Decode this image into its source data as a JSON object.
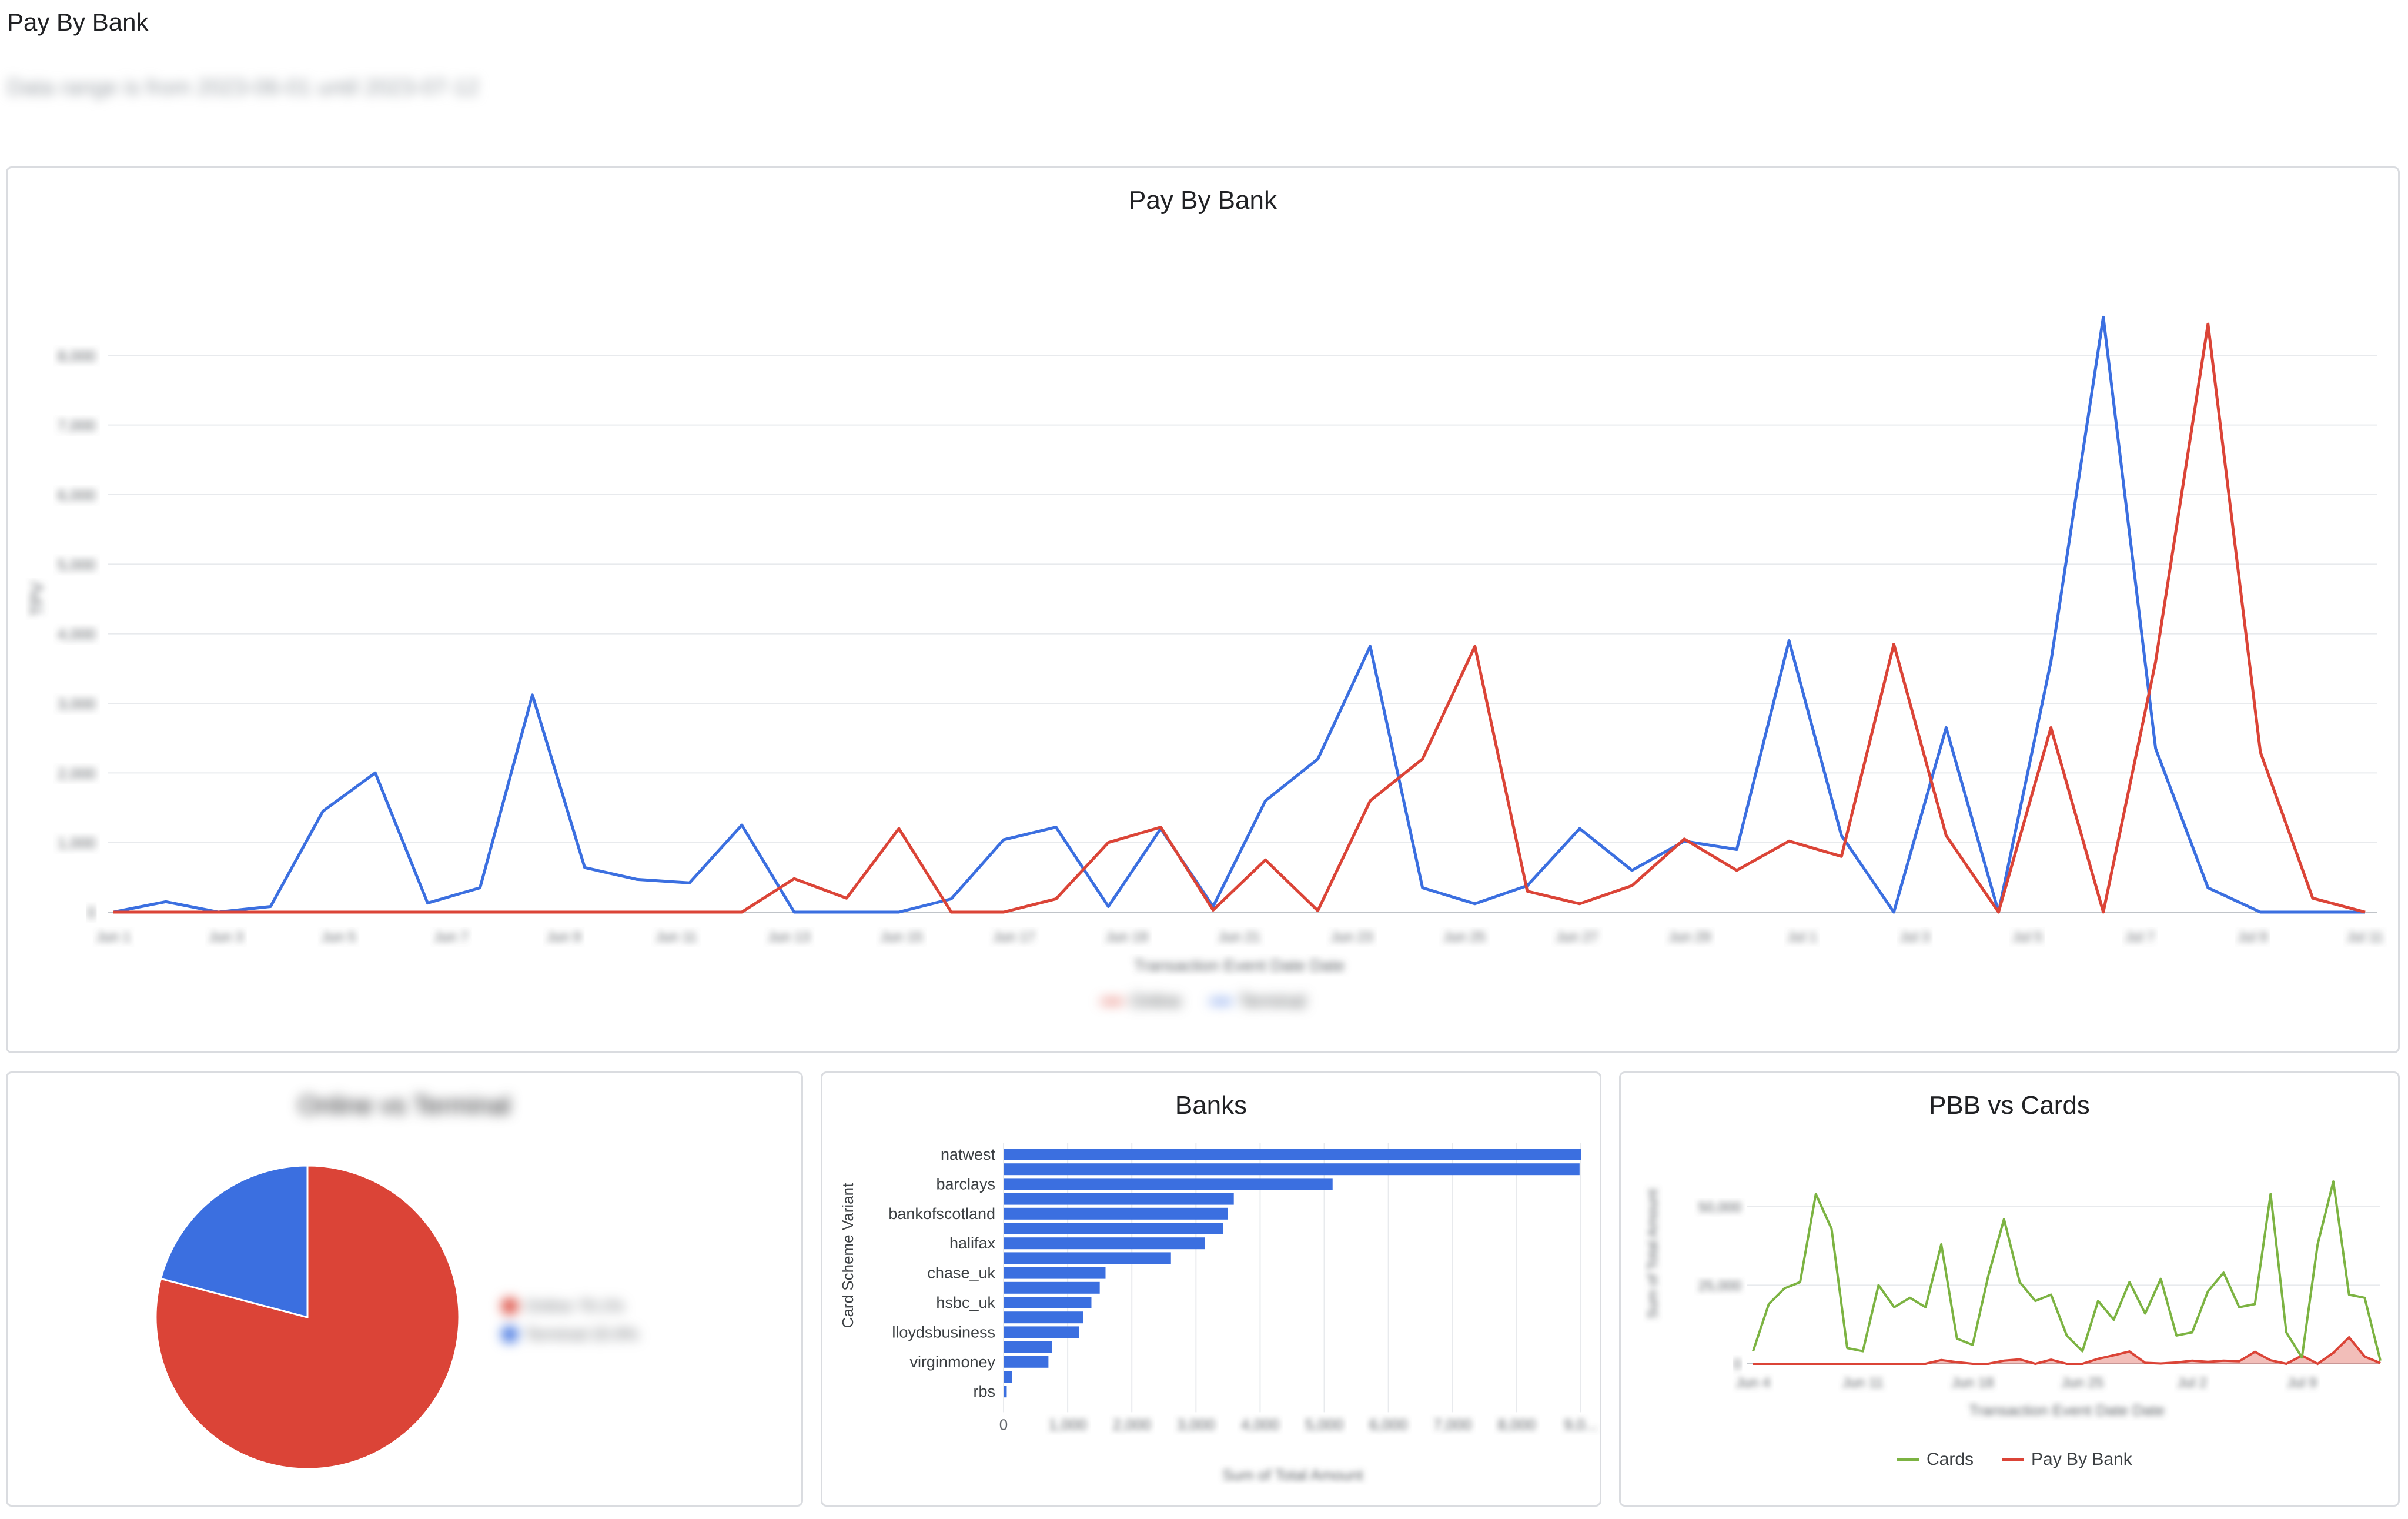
{
  "page": {
    "title": "Pay By Bank",
    "subtitle": "Data range is from 2023-06-01 until 2023-07-12"
  },
  "colors": {
    "online": "#db4437",
    "terminal": "#3b6fe0",
    "cards": "#7cb342",
    "grid": "#e8eaed",
    "axis_text": "#5f6368"
  },
  "chart_data": [
    {
      "id": "main",
      "type": "line",
      "title": "Pay By Bank",
      "xlabel": "Transaction Event Date Date",
      "ylabel": "TPV",
      "ylim": [
        0,
        9000
      ],
      "yticks": [
        "0",
        "1,000",
        "2,000",
        "3,000",
        "4,000",
        "5,000",
        "6,000",
        "7,000",
        "8,000"
      ],
      "xtick_labels": [
        "Jun 1",
        "Jun 3",
        "Jun 5",
        "Jun 7",
        "Jun 9",
        "Jun 11",
        "Jun 13",
        "Jun 15",
        "Jun 17",
        "Jun 19",
        "Jun 21",
        "Jun 23",
        "Jun 25",
        "Jun 27",
        "Jun 29",
        "Jul 1",
        "Jul 3",
        "Jul 5",
        "Jul 7",
        "Jul 9",
        "Jul 11"
      ],
      "legend": [
        "Online",
        "Terminal"
      ],
      "legend_position": "bottom",
      "series": [
        {
          "name": "Online",
          "values": [
            0,
            0,
            0,
            0,
            0,
            0,
            0,
            0,
            0,
            0,
            0,
            0,
            0,
            480,
            200,
            1200,
            0,
            0,
            190,
            1000,
            1220,
            30,
            750,
            20,
            1600,
            2200,
            3820,
            300,
            120,
            380,
            1050,
            600,
            1020,
            800,
            3850,
            1100,
            0,
            2650,
            0,
            3600,
            8450,
            2300,
            200,
            0
          ]
        },
        {
          "name": "Terminal",
          "values": [
            0,
            150,
            0,
            80,
            1450,
            2000,
            130,
            350,
            3120,
            640,
            470,
            420,
            1250,
            0,
            0,
            0,
            190,
            1040,
            1220,
            80,
            1200,
            80,
            1600,
            2200,
            3820,
            350,
            120,
            380,
            1200,
            600,
            1020,
            900,
            3900,
            1100,
            0,
            2650,
            0,
            3600,
            8550,
            2350,
            350,
            0,
            0,
            0
          ]
        }
      ]
    },
    {
      "id": "pie",
      "type": "pie",
      "title": "Online vs Terminal",
      "legend_position": "right",
      "slices": [
        {
          "name": "Online",
          "percent": 79.1,
          "label": "Online 79.1%"
        },
        {
          "name": "Terminal",
          "percent": 20.9,
          "label": "Terminal 20.9%"
        }
      ]
    },
    {
      "id": "banks",
      "type": "bar",
      "orientation": "horizontal",
      "title": "Banks",
      "ylabel": "Card Scheme Variant",
      "xlabel": "Sum of Total Amount",
      "xlim": [
        0,
        9000
      ],
      "xticks": [
        "0",
        "1,000",
        "2,000",
        "3,000",
        "4,000",
        "5,000",
        "6,000",
        "7,000",
        "8,000",
        "9,0..."
      ],
      "visible_category_labels": [
        "natwest",
        "barclays",
        "bankofscotland",
        "halifax",
        "chase_uk",
        "hsbc_uk",
        "lloydsbusiness",
        "virginmoney",
        "rbs"
      ],
      "values": [
        9000,
        8980,
        5130,
        3590,
        3500,
        3420,
        3140,
        2610,
        1590,
        1500,
        1370,
        1240,
        1180,
        760,
        700,
        130,
        50
      ]
    },
    {
      "id": "pbb_vs_cards",
      "type": "line",
      "title": "PBB vs Cards",
      "xlabel": "Transaction Event Date Date",
      "ylabel": "Sum of Total Amount",
      "ylim": [
        0,
        70000
      ],
      "yticks": [
        "0",
        "25,000",
        "50,000"
      ],
      "xtick_labels": [
        "Jun 4",
        "Jun 11",
        "Jun 18",
        "Jun 25",
        "Jul 2",
        "Jul 9"
      ],
      "legend": [
        "Cards",
        "Pay By Bank"
      ],
      "legend_position": "bottom",
      "series": [
        {
          "name": "Cards",
          "values": [
            4000,
            19000,
            24000,
            26000,
            54000,
            43000,
            5000,
            4000,
            25000,
            18000,
            21000,
            18000,
            38000,
            8000,
            6000,
            28000,
            46000,
            26000,
            20000,
            22000,
            9000,
            4000,
            20000,
            14000,
            26000,
            16000,
            27000,
            9000,
            10000,
            23000,
            29000,
            18000,
            19000,
            54000,
            10000,
            2000,
            38000,
            58000,
            22000,
            21000,
            1000
          ]
        },
        {
          "name": "Pay By Bank",
          "values": [
            0,
            0,
            0,
            0,
            0,
            0,
            0,
            0,
            0,
            0,
            0,
            0,
            1200,
            500,
            0,
            0,
            1000,
            1400,
            0,
            1300,
            0,
            0,
            1600,
            2700,
            3900,
            300,
            100,
            400,
            1000,
            600,
            1000,
            800,
            3800,
            1100,
            0,
            2600,
            0,
            3500,
            8400,
            2300,
            200
          ]
        }
      ]
    }
  ]
}
